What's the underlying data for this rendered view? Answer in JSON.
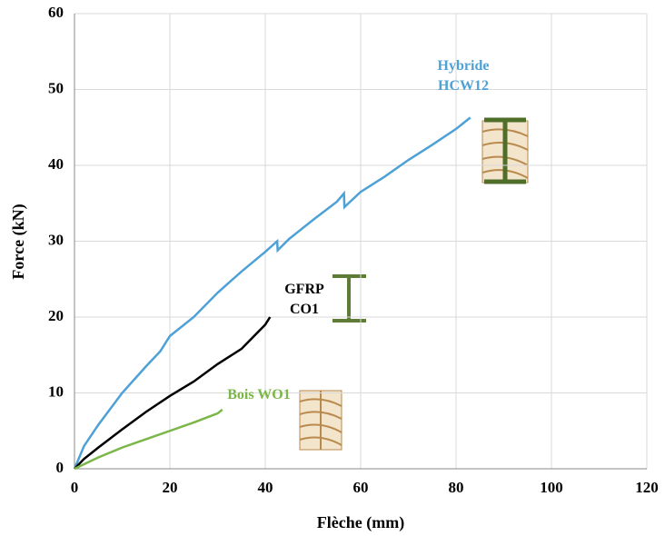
{
  "chart_data": {
    "type": "line",
    "x_label": "Flèche (mm)",
    "y_label": "Force (kN)",
    "xlim": [
      0,
      120
    ],
    "xticks": [
      0,
      20,
      40,
      60,
      80,
      100,
      120
    ],
    "ylim": [
      0,
      60
    ],
    "yticks": [
      0,
      10,
      20,
      30,
      40,
      50,
      60
    ],
    "grid": true,
    "series": [
      {
        "name": "Hybride HCW12",
        "color": "#4ea1d6",
        "x": [
          0,
          2,
          5,
          10,
          15,
          18,
          20,
          25,
          30,
          35,
          40,
          42.5,
          42.6,
          45,
          50,
          55,
          56.5,
          56.6,
          60,
          65,
          70,
          75,
          80,
          83
        ],
        "values": [
          0,
          3,
          5.8,
          10,
          13.5,
          15.5,
          17.5,
          20,
          23.2,
          26,
          28.6,
          30,
          28.8,
          30.3,
          32.8,
          35.2,
          36.3,
          34.5,
          36.5,
          38.5,
          40.7,
          42.7,
          44.8,
          46.3
        ]
      },
      {
        "name": "GFRP CO1",
        "color": "#000000",
        "x": [
          0,
          2,
          5,
          10,
          15,
          20,
          25,
          30,
          35,
          40,
          41
        ],
        "values": [
          0,
          1.3,
          2.8,
          5.2,
          7.5,
          9.6,
          11.5,
          13.8,
          15.8,
          19,
          20
        ]
      },
      {
        "name": "Bois WO1",
        "color": "#7ab648",
        "x": [
          0,
          5,
          10,
          15,
          20,
          25,
          30,
          31
        ],
        "values": [
          0,
          1.5,
          2.8,
          3.9,
          5,
          6.1,
          7.3,
          7.8
        ]
      }
    ]
  }
}
